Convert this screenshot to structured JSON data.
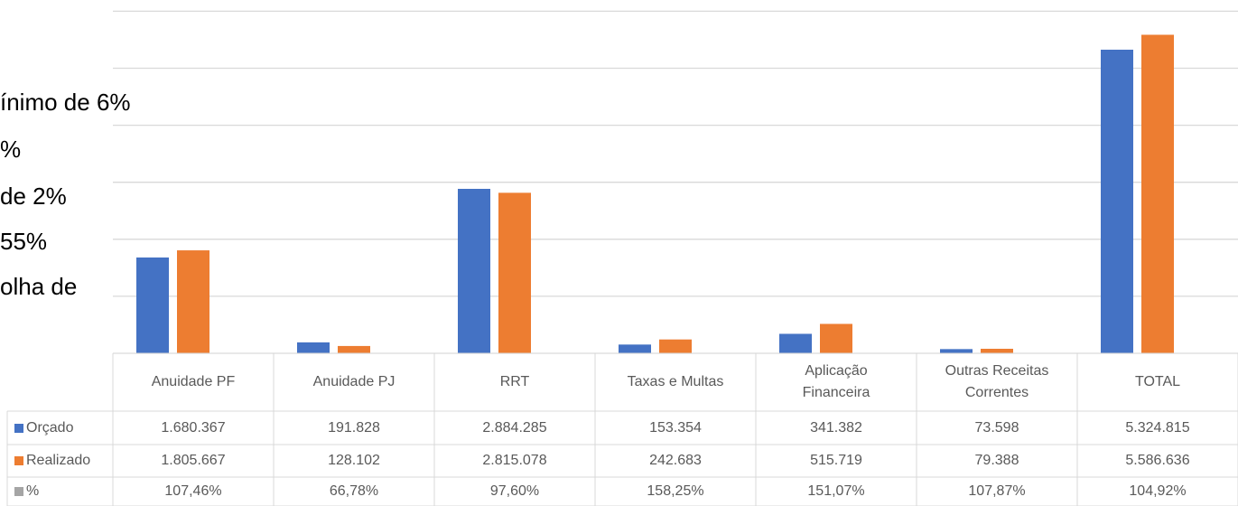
{
  "background_text": [
    "ínimo de 6%",
    "%",
    "de 2%",
    "55%",
    "olha de"
  ],
  "chart_data": {
    "type": "bar",
    "categories": [
      "Anuidade PF",
      "Anuidade PJ",
      "RRT",
      "Taxas e Multas",
      "Aplicação Financeira",
      "Outras Receitas Correntes",
      "TOTAL"
    ],
    "series": [
      {
        "name": "Orçado",
        "color": "#4472c4",
        "values": [
          1680367,
          191828,
          2884285,
          153354,
          341382,
          73598,
          5324815
        ],
        "value_labels": [
          "1.680.367",
          "191.828",
          "2.884.285",
          "153.354",
          "341.382",
          "73.598",
          "5.324.815"
        ]
      },
      {
        "name": "Realizado",
        "color": "#ed7d31",
        "values": [
          1805667,
          128102,
          2815078,
          242683,
          515719,
          79388,
          5586636
        ],
        "value_labels": [
          "1.805.667",
          "128.102",
          "2.815.078",
          "242.683",
          "515.719",
          "79.388",
          "5.586.636"
        ]
      },
      {
        "name": "%",
        "color": "#a5a5a5",
        "values": [
          107.46,
          66.78,
          97.6,
          158.25,
          151.07,
          107.87,
          104.92
        ],
        "value_labels": [
          "107,46%",
          "66,78%",
          "97,60%",
          "158,25%",
          "151,07%",
          "107,87%",
          "104,92%"
        ]
      }
    ],
    "ylim": [
      0,
      6000000
    ],
    "yticks": [
      0,
      1000000,
      2000000,
      3000000,
      4000000,
      5000000,
      6000000
    ],
    "grid": true,
    "data_table": true
  }
}
